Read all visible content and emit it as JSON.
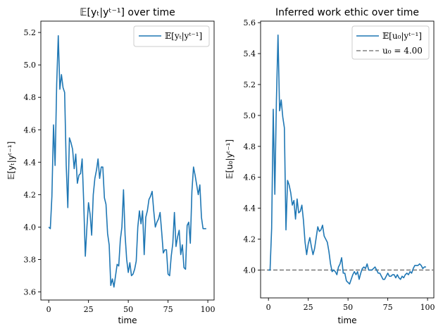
{
  "chart_data": [
    {
      "type": "line",
      "title": "𝔼[yₜ|yᵗ⁻¹] over time",
      "xlabel": "time",
      "ylabel": "𝔼[yₜ|yᵗ⁻¹]",
      "xlim": [
        -4.95,
        103.95
      ],
      "ylim": [
        3.55,
        5.27
      ],
      "xticks": [
        0,
        25,
        50,
        75,
        100
      ],
      "yticks": [
        3.6,
        3.8,
        4.0,
        4.2,
        4.4,
        4.6,
        4.8,
        5.0,
        5.2
      ],
      "ytick_labels": [
        "3.6",
        "3.8",
        "4.0",
        "4.2",
        "4.4",
        "4.6",
        "4.8",
        "5.0",
        "5.2"
      ],
      "legend_position": "top-right",
      "color": "#1f77b4",
      "series": [
        {
          "name": "𝔼[yₜ|yᵗ⁻¹]",
          "x": [
            0,
            1,
            2,
            3,
            4,
            5,
            6,
            7,
            8,
            9,
            10,
            11,
            12,
            13,
            14,
            15,
            16,
            17,
            18,
            19,
            20,
            21,
            22,
            23,
            24,
            25,
            26,
            27,
            28,
            29,
            30,
            31,
            32,
            33,
            34,
            35,
            36,
            37,
            38,
            39,
            40,
            41,
            42,
            43,
            44,
            45,
            46,
            47,
            48,
            49,
            50,
            51,
            52,
            53,
            54,
            55,
            56,
            57,
            58,
            59,
            60,
            61,
            62,
            63,
            64,
            65,
            66,
            67,
            68,
            69,
            70,
            71,
            72,
            73,
            74,
            75,
            76,
            77,
            78,
            79,
            80,
            81,
            82,
            83,
            84,
            85,
            86,
            87,
            88,
            89,
            90,
            91,
            92,
            93,
            94,
            95,
            96,
            97,
            98,
            99
          ],
          "values": [
            4.0,
            3.99,
            4.19,
            4.63,
            4.38,
            4.88,
            5.18,
            4.85,
            4.94,
            4.86,
            4.83,
            4.38,
            4.12,
            4.55,
            4.52,
            4.48,
            4.36,
            4.45,
            4.27,
            4.32,
            4.33,
            4.42,
            4.15,
            3.82,
            4.0,
            4.15,
            4.08,
            3.95,
            4.2,
            4.3,
            4.35,
            4.42,
            4.3,
            4.37,
            4.37,
            4.18,
            4.14,
            3.96,
            3.89,
            3.64,
            3.68,
            3.63,
            3.7,
            3.77,
            3.76,
            3.92,
            4.0,
            4.23,
            3.95,
            3.8,
            3.72,
            3.78,
            3.7,
            3.71,
            3.74,
            3.79,
            4.0,
            4.1,
            4.02,
            4.1,
            3.83,
            4.06,
            4.1,
            4.17,
            4.19,
            4.22,
            4.1,
            4.0,
            4.03,
            4.05,
            4.09,
            3.97,
            3.84,
            3.86,
            3.86,
            3.71,
            3.7,
            3.82,
            3.9,
            4.09,
            3.88,
            3.94,
            3.98,
            3.83,
            3.89,
            3.75,
            3.74,
            4.01,
            4.03,
            3.9,
            4.22,
            4.37,
            4.32,
            4.26,
            4.2,
            4.26,
            4.06,
            3.99,
            3.99,
            3.99
          ]
        }
      ]
    },
    {
      "type": "line",
      "title": "Inferred work ethic over time",
      "xlabel": "time",
      "ylabel": "𝔼[u₀|yᵗ⁻¹]",
      "xlim": [
        -4.95,
        103.95
      ],
      "ylim": [
        3.82,
        5.61
      ],
      "xticks": [
        0,
        25,
        50,
        75,
        100
      ],
      "yticks": [
        4.0,
        4.2,
        4.4,
        4.6,
        4.8,
        5.0,
        5.2,
        5.4,
        5.6
      ],
      "ytick_labels": [
        "4.0",
        "4.2",
        "4.4",
        "4.6",
        "4.8",
        "5.0",
        "5.2",
        "5.4",
        "5.6"
      ],
      "legend_position": "top-right",
      "series": [
        {
          "name": "𝔼[u₀|yᵗ⁻¹]",
          "color": "#1f77b4",
          "x": [
            0,
            1,
            2,
            3,
            4,
            5,
            6,
            7,
            8,
            9,
            10,
            11,
            12,
            13,
            14,
            15,
            16,
            17,
            18,
            19,
            20,
            21,
            22,
            23,
            24,
            25,
            26,
            27,
            28,
            29,
            30,
            31,
            32,
            33,
            34,
            35,
            36,
            37,
            38,
            39,
            40,
            41,
            42,
            43,
            44,
            45,
            46,
            47,
            48,
            49,
            50,
            51,
            52,
            53,
            54,
            55,
            56,
            57,
            58,
            59,
            60,
            61,
            62,
            63,
            64,
            65,
            66,
            67,
            68,
            69,
            70,
            71,
            72,
            73,
            74,
            75,
            76,
            77,
            78,
            79,
            80,
            81,
            82,
            83,
            84,
            85,
            86,
            87,
            88,
            89,
            90,
            91,
            92,
            93,
            94,
            95,
            96,
            97,
            98,
            99
          ],
          "values": [
            4.0,
            4.0,
            4.27,
            5.04,
            4.49,
            5.1,
            5.52,
            5.03,
            5.1,
            4.99,
            4.92,
            4.26,
            4.58,
            4.55,
            4.5,
            4.42,
            4.45,
            4.33,
            4.46,
            4.37,
            4.38,
            4.42,
            4.32,
            4.18,
            4.1,
            4.17,
            4.21,
            4.15,
            4.1,
            4.14,
            4.21,
            4.28,
            4.25,
            4.26,
            4.29,
            4.22,
            4.2,
            4.18,
            4.12,
            4.04,
            3.99,
            4.0,
            3.99,
            3.97,
            4.02,
            4.04,
            4.08,
            3.98,
            3.98,
            3.93,
            3.92,
            3.91,
            3.94,
            3.97,
            3.99,
            3.97,
            3.99,
            3.94,
            3.98,
            4.01,
            4.02,
            4.01,
            4.04,
            4.0,
            4.0,
            4.0,
            4.01,
            4.02,
            4.0,
            3.98,
            3.98,
            3.96,
            3.94,
            3.94,
            3.96,
            3.98,
            3.96,
            3.96,
            3.97,
            3.97,
            3.95,
            3.97,
            3.95,
            3.94,
            3.96,
            3.95,
            3.97,
            3.98,
            3.97,
            3.99,
            3.98,
            4.01,
            4.03,
            4.03,
            4.03,
            4.04,
            4.03,
            4.01,
            4.02,
            4.02
          ]
        },
        {
          "name": "u₀ = 4.00",
          "color": "#808080",
          "style": "dashed",
          "hline": 4.0
        }
      ]
    }
  ]
}
